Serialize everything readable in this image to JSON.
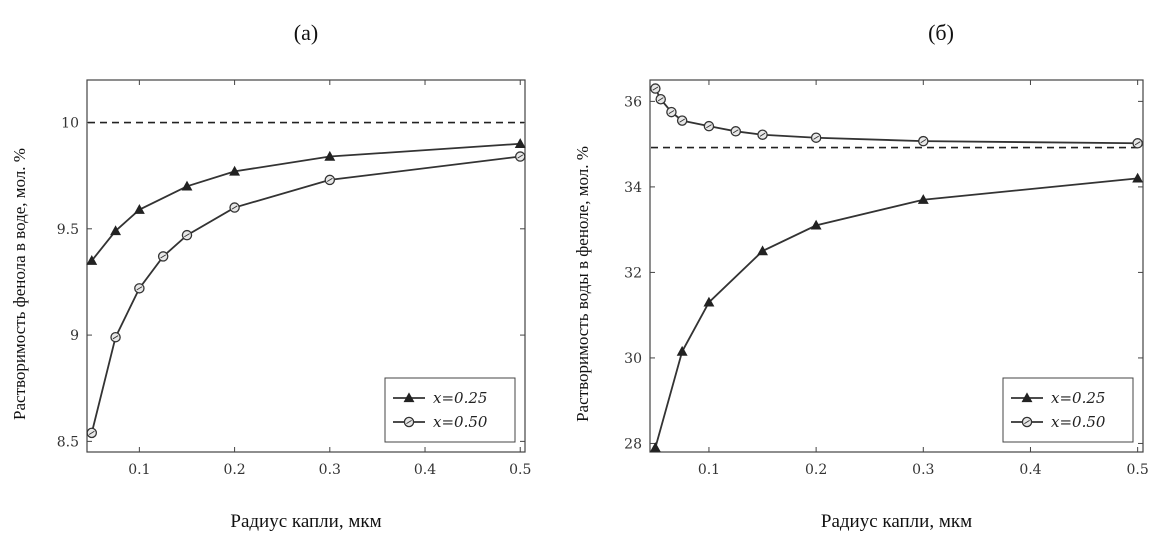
{
  "chart_data": [
    {
      "type": "line",
      "panel_label": "(a)",
      "xlabel": "Радиус капли,  мкм",
      "ylabel": "Растворимость фенола в воде, мол. %",
      "xlim": [
        0.045,
        0.505
      ],
      "ylim": [
        8.45,
        10.2
      ],
      "xticks": [
        0.1,
        0.2,
        0.3,
        0.4,
        0.5
      ],
      "xtick_labels": [
        "0.1",
        "0.2",
        "0.3",
        "0.4",
        "0.5"
      ],
      "yticks": [
        8.5,
        9,
        9.5,
        10
      ],
      "ytick_labels": [
        "8.5",
        "9",
        "9.5",
        "10"
      ],
      "grid": false,
      "legend_position": "bottom-right",
      "reference_line": {
        "y": 10.0,
        "style": "dashed"
      },
      "series": [
        {
          "name": "x=0.25",
          "marker": "triangle",
          "x": [
            0.05,
            0.075,
            0.1,
            0.15,
            0.2,
            0.3,
            0.5
          ],
          "y": [
            9.35,
            9.49,
            9.59,
            9.7,
            9.77,
            9.84,
            9.9
          ]
        },
        {
          "name": "x=0.50",
          "marker": "circle",
          "x": [
            0.05,
            0.075,
            0.1,
            0.125,
            0.15,
            0.2,
            0.3,
            0.5
          ],
          "y": [
            8.54,
            8.99,
            9.22,
            9.37,
            9.47,
            9.6,
            9.73,
            9.84
          ]
        }
      ]
    },
    {
      "type": "line",
      "panel_label": "(б)",
      "xlabel": "Радиус капли,  мкм",
      "ylabel": "Растворимость воды в феноле, мол. %",
      "xlim": [
        0.045,
        0.505
      ],
      "ylim": [
        27.8,
        36.5
      ],
      "xticks": [
        0.1,
        0.2,
        0.3,
        0.4,
        0.5
      ],
      "xtick_labels": [
        "0.1",
        "0.2",
        "0.3",
        "0.4",
        "0.5"
      ],
      "yticks": [
        28,
        30,
        32,
        34,
        36
      ],
      "ytick_labels": [
        "28",
        "30",
        "32",
        "34",
        "36"
      ],
      "grid": false,
      "legend_position": "bottom-right",
      "reference_line": {
        "y": 34.92,
        "style": "dashed"
      },
      "series": [
        {
          "name": "x=0.25",
          "marker": "triangle",
          "x": [
            0.05,
            0.075,
            0.1,
            0.15,
            0.2,
            0.3,
            0.5
          ],
          "y": [
            27.9,
            30.15,
            31.3,
            32.5,
            33.1,
            33.7,
            34.2
          ]
        },
        {
          "name": "x=0.50",
          "marker": "circle",
          "x": [
            0.05,
            0.055,
            0.065,
            0.075,
            0.1,
            0.125,
            0.15,
            0.2,
            0.3,
            0.5
          ],
          "y": [
            36.3,
            36.05,
            35.75,
            35.55,
            35.42,
            35.3,
            35.22,
            35.15,
            35.07,
            35.02
          ]
        }
      ]
    }
  ]
}
